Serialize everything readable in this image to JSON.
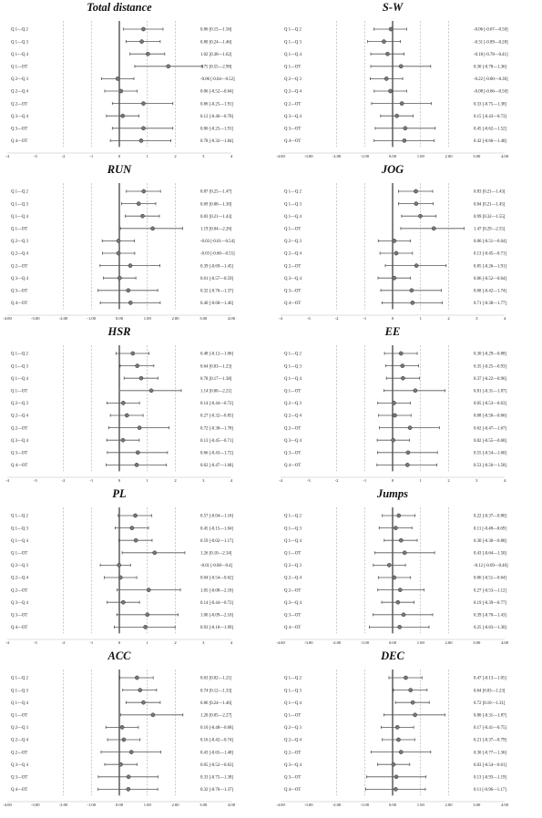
{
  "chart_data": [
    {
      "type": "forest",
      "title": "Total distance",
      "xticks": [
        "-4",
        "-3",
        "-2",
        "-1",
        "0",
        "1",
        "2",
        "3",
        "4"
      ],
      "xlim": [
        -4,
        4
      ],
      "ref_lines": [
        -2,
        -1,
        0,
        1,
        2
      ],
      "rows": [
        {
          "label": "Q 1—Q 2",
          "est": 0.86,
          "lo": 0.15,
          "hi": 1.56,
          "text": "0.86 [0.15—1.56]"
        },
        {
          "label": "Q 1—Q 3",
          "est": 0.8,
          "lo": 0.24,
          "hi": 1.46,
          "text": "0.80 [0.24—1.46]"
        },
        {
          "label": "Q 1—Q 4",
          "est": 1.02,
          "lo": 0.38,
          "hi": 1.62,
          "text": "1.02 [0.38—1.62]"
        },
        {
          "label": "Q 1—OT",
          "est": 1.75,
          "lo": 0.55,
          "hi": 2.98,
          "text": "1.75 [0.55—2.98]"
        },
        {
          "label": "Q 2—Q 3",
          "est": -0.06,
          "lo": -0.64,
          "hi": 0.52,
          "text": "-0.06 [-0.64—0.52]"
        },
        {
          "label": "Q 2—Q 4",
          "est": 0.06,
          "lo": -0.52,
          "hi": 0.64,
          "text": "0.06 [-0.52—0.64]"
        },
        {
          "label": "Q 2—OT",
          "est": 0.86,
          "lo": -0.25,
          "hi": 1.91,
          "text": "0.86 [-0.25—1.91]"
        },
        {
          "label": "Q 3—Q 4",
          "est": 0.12,
          "lo": -0.46,
          "hi": 0.7,
          "text": "0.12 [-0.46—0.70]"
        },
        {
          "label": "Q 3—OT",
          "est": 0.86,
          "lo": -0.25,
          "hi": 1.91,
          "text": "0.86 [-0.25—1.91]"
        },
        {
          "label": "Q 4—OT",
          "est": 0.78,
          "lo": -0.32,
          "hi": 1.84,
          "text": "0.78 [-0.32—1.84]"
        }
      ]
    },
    {
      "type": "forest",
      "title": "S-W",
      "xticks": [
        "-4.00",
        "-3.00",
        "-2.00",
        "-1.00",
        "0.00",
        "1.00",
        "2.00",
        "3.00",
        "4.00"
      ],
      "xlim": [
        -4,
        4
      ],
      "ref_lines": [
        -2,
        -1,
        0,
        1,
        2
      ],
      "rows": [
        {
          "label": "Q 1—Q 2",
          "est": -0.06,
          "lo": -0.67,
          "hi": 0.5,
          "text": "-0.06 [-0.67—0.50]"
        },
        {
          "label": "Q 1—Q 3",
          "est": -0.31,
          "lo": -0.89,
          "hi": 0.28,
          "text": "-0.31 [-0.89—0.28]"
        },
        {
          "label": "Q 1—Q 4",
          "est": -0.18,
          "lo": -0.78,
          "hi": 0.41,
          "text": "-0.18 [-0.78—0.41]"
        },
        {
          "label": "Q 1—OT",
          "est": 0.3,
          "lo": -0.78,
          "hi": 1.36,
          "text": "0.30 [-0.78—1.36]"
        },
        {
          "label": "Q 2—Q 3",
          "est": -0.22,
          "lo": -0.8,
          "hi": 0.36,
          "text": "-0.22 [-0.80—0.36]"
        },
        {
          "label": "Q 2—Q 4",
          "est": -0.08,
          "lo": -0.66,
          "hi": 0.5,
          "text": "-0.08 [-0.66—0.50]"
        },
        {
          "label": "Q 2—OT",
          "est": 0.33,
          "lo": -0.75,
          "hi": 1.38,
          "text": "0.33 [-0.75—1.38]"
        },
        {
          "label": "Q 3—Q 4",
          "est": 0.15,
          "lo": -0.43,
          "hi": 0.73,
          "text": "0.15 [-0.43—0.73]"
        },
        {
          "label": "Q 3—OT",
          "est": 0.45,
          "lo": -0.62,
          "hi": 1.52,
          "text": "0.45 [-0.62—1.52]"
        },
        {
          "label": "Q 4—OT",
          "est": 0.42,
          "lo": -0.66,
          "hi": 1.48,
          "text": "0.42 [-0.66—1.48]"
        }
      ]
    },
    {
      "type": "forest",
      "title": "RUN",
      "xticks": [
        "-4.00",
        "-3.00",
        "-2.00",
        "-1.00",
        "0.00",
        "1.00",
        "2.00",
        "3.00",
        "4.00"
      ],
      "xlim": [
        -4,
        4
      ],
      "ref_lines": [
        -2,
        -1,
        0,
        1,
        2
      ],
      "rows": [
        {
          "label": "Q 1—Q 2",
          "est": 0.87,
          "lo": 0.25,
          "hi": 1.47,
          "text": "0.87 [0.25—1.47]"
        },
        {
          "label": "Q 1—Q 3",
          "est": 0.69,
          "lo": 0.08,
          "hi": 1.3,
          "text": "0.69 [0.08—1.30]"
        },
        {
          "label": "Q 1—Q 4",
          "est": 0.83,
          "lo": 0.21,
          "hi": 1.43,
          "text": "0.83 [0.21—1.43]"
        },
        {
          "label": "Q 1—OT",
          "est": 1.19,
          "lo": 0.04,
          "hi": 2.26,
          "text": "1.19 [0.04—2.26]"
        },
        {
          "label": "Q 2—Q 3",
          "est": -0.03,
          "lo": -0.61,
          "hi": 0.54,
          "text": "-0.03 [-0.61—0.54]"
        },
        {
          "label": "Q 2—Q 4",
          "est": -0.03,
          "lo": -0.6,
          "hi": 0.55,
          "text": "-0.03 [-0.60—0.55]"
        },
        {
          "label": "Q 2—OT",
          "est": 0.39,
          "lo": -0.69,
          "hi": 1.45,
          "text": "0.39 [-0.69—1.45]"
        },
        {
          "label": "Q 3—Q 4",
          "est": 0.01,
          "lo": -0.57,
          "hi": 0.59,
          "text": "0.01 [-0.57—0.59]"
        },
        {
          "label": "Q 3—OT",
          "est": 0.32,
          "lo": -0.76,
          "hi": 1.37,
          "text": "0.32 [-0.76—1.37]"
        },
        {
          "label": "Q 4—OT",
          "est": 0.4,
          "lo": -0.68,
          "hi": 1.46,
          "text": "0.40 [-0.68—1.46]"
        }
      ]
    },
    {
      "type": "forest",
      "title": "JOG",
      "xticks": [
        "-4",
        "-3",
        "-2",
        "-1",
        "0",
        "1",
        "2",
        "3",
        "4"
      ],
      "xlim": [
        -4,
        4
      ],
      "ref_lines": [
        -2,
        -1,
        0,
        1,
        2
      ],
      "rows": [
        {
          "label": "Q 1—Q 2",
          "est": 0.83,
          "lo": 0.21,
          "hi": 1.43,
          "text": "0.83 [0.21—1.43]"
        },
        {
          "label": "Q 1—Q 3",
          "est": 0.84,
          "lo": 0.21,
          "hi": 1.45,
          "text": "0.84 [0.21—1.45]"
        },
        {
          "label": "Q 1—Q 4",
          "est": 0.99,
          "lo": 0.32,
          "hi": 1.55,
          "text": "0.99 [0.32—1.55]"
        },
        {
          "label": "Q 1—OT",
          "est": 1.47,
          "lo": 0.29,
          "hi": 2.55,
          "text": "1.47 [0.29—2.55]"
        },
        {
          "label": "Q 2—Q 3",
          "est": 0.06,
          "lo": -0.51,
          "hi": 0.64,
          "text": "0.06 [-0.51—0.64]"
        },
        {
          "label": "Q 2—Q 4",
          "est": 0.13,
          "lo": -0.45,
          "hi": 0.71,
          "text": "0.13 [-0.45—0.71]"
        },
        {
          "label": "Q 2—OT",
          "est": 0.85,
          "lo": -0.26,
          "hi": 1.91,
          "text": "0.85 [-0.26—1.91]"
        },
        {
          "label": "Q 3—Q 4",
          "est": 0.06,
          "lo": -0.52,
          "hi": 0.64,
          "text": "0.06 [-0.52—0.64]"
        },
        {
          "label": "Q 3—OT",
          "est": 0.68,
          "lo": -0.42,
          "hi": 1.74,
          "text": "0.68 [-0.42—1.74]"
        },
        {
          "label": "Q 4—OT",
          "est": 0.71,
          "lo": -0.38,
          "hi": 1.77,
          "text": "0.71 [-0.38—1.77]"
        }
      ]
    },
    {
      "type": "forest",
      "title": "HSR",
      "xticks": [
        "-4",
        "-3",
        "-2",
        "-1",
        "0",
        "1",
        "2",
        "3",
        "4"
      ],
      "xlim": [
        -4,
        4
      ],
      "ref_lines": [
        -2,
        -1,
        0,
        1,
        2
      ],
      "rows": [
        {
          "label": "Q 1—Q 2",
          "est": 0.48,
          "lo": -0.12,
          "hi": 1.06,
          "text": "0.48 [-0.12—1.06]"
        },
        {
          "label": "Q 1—Q 3",
          "est": 0.64,
          "lo": 0.03,
          "hi": 1.23,
          "text": "0.64 [0.03—1.23]"
        },
        {
          "label": "Q 1—Q 4",
          "est": 0.78,
          "lo": 0.17,
          "hi": 1.38,
          "text": "0.78 [0.17—1.38]"
        },
        {
          "label": "Q 1—OT",
          "est": 1.14,
          "lo": 0.0,
          "hi": 2.21,
          "text": "1.14 [0.00—2.21]"
        },
        {
          "label": "Q 2—Q 3",
          "est": 0.14,
          "lo": -0.44,
          "hi": 0.72,
          "text": "0.14 [-0.44—0.72]"
        },
        {
          "label": "Q 2—Q 4",
          "est": 0.27,
          "lo": -0.32,
          "hi": 0.85,
          "text": "0.27 [-0.32—0.85]"
        },
        {
          "label": "Q 2—OT",
          "est": 0.72,
          "lo": -0.38,
          "hi": 1.78,
          "text": "0.72 [-0.38—1.78]"
        },
        {
          "label": "Q 3—Q 4",
          "est": 0.13,
          "lo": -0.45,
          "hi": 0.71,
          "text": "0.13 [-0.45—0.71]"
        },
        {
          "label": "Q 3—OT",
          "est": 0.66,
          "lo": -0.43,
          "hi": 1.72,
          "text": "0.66 [-0.43—1.72]"
        },
        {
          "label": "Q 4—OT",
          "est": 0.62,
          "lo": -0.47,
          "hi": 1.68,
          "text": "0.62 [-0.47—1.68]"
        }
      ]
    },
    {
      "type": "forest",
      "title": "EE",
      "xticks": [
        "-4",
        "-3",
        "-2",
        "-1",
        "0",
        "1",
        "2",
        "3",
        "4"
      ],
      "xlim": [
        -4,
        4
      ],
      "ref_lines": [
        -2,
        -1,
        0,
        1,
        2
      ],
      "rows": [
        {
          "label": "Q 1—Q 2",
          "est": 0.3,
          "lo": -0.29,
          "hi": 0.88,
          "text": "0.30 [-0.29—0.88]"
        },
        {
          "label": "Q 1—Q 3",
          "est": 0.35,
          "lo": -0.25,
          "hi": 0.93,
          "text": "0.35 [-0.25—0.93]"
        },
        {
          "label": "Q 1—Q 4",
          "est": 0.37,
          "lo": -0.22,
          "hi": 0.96,
          "text": "0.37 [-0.22—0.96]"
        },
        {
          "label": "Q 1—OT",
          "est": 0.81,
          "lo": -0.31,
          "hi": 1.87,
          "text": "0.81 [-0.31—1.87]"
        },
        {
          "label": "Q 2—Q 3",
          "est": 0.05,
          "lo": -0.53,
          "hi": 0.63,
          "text": "0.05 [-0.53—0.63]"
        },
        {
          "label": "Q 2—Q 4",
          "est": 0.08,
          "lo": -0.5,
          "hi": 0.66,
          "text": "0.08 [-0.50—0.66]"
        },
        {
          "label": "Q 2—OT",
          "est": 0.62,
          "lo": -0.47,
          "hi": 1.67,
          "text": "0.62 [-0.47—1.67]"
        },
        {
          "label": "Q 3—Q 4",
          "est": 0.02,
          "lo": -0.55,
          "hi": 0.6,
          "text": "0.02 [-0.55—0.60]"
        },
        {
          "label": "Q 3—OT",
          "est": 0.55,
          "lo": -0.54,
          "hi": 1.6,
          "text": "0.55 [-0.54—1.60]"
        },
        {
          "label": "Q 4—OT",
          "est": 0.53,
          "lo": -0.56,
          "hi": 1.58,
          "text": "0.53 [-0.56—1.58]"
        }
      ]
    },
    {
      "type": "forest",
      "title": "PL",
      "xticks": [
        "-4",
        "-3",
        "-2",
        "-1",
        "0",
        "1",
        "2",
        "3",
        "4"
      ],
      "xlim": [
        -4,
        4
      ],
      "ref_lines": [
        -2,
        -1,
        0,
        1,
        2
      ],
      "rows": [
        {
          "label": "Q 1—Q 2",
          "est": 0.57,
          "lo": -0.04,
          "hi": 1.16,
          "text": "0.57 [-0.04—1.16]"
        },
        {
          "label": "Q 1—Q 3",
          "est": 0.45,
          "lo": -0.15,
          "hi": 1.04,
          "text": "0.45 [-0.15—1.04]"
        },
        {
          "label": "Q 1—Q 4",
          "est": 0.59,
          "lo": -0.02,
          "hi": 1.17,
          "text": "0.59 [-0.02—1.17]"
        },
        {
          "label": "Q 1—OT",
          "est": 1.26,
          "lo": 0.1,
          "hi": 2.34,
          "text": "1.26 [0.10—2.34]"
        },
        {
          "label": "Q 2—Q 3",
          "est": -0.01,
          "lo": -0.68,
          "hi": 0.4,
          "text": "-0.01 [-0.68—0.4]"
        },
        {
          "label": "Q 2—Q 4",
          "est": 0.04,
          "lo": -0.54,
          "hi": 0.62,
          "text": "0.04 [-0.54—0.62]"
        },
        {
          "label": "Q 2—OT",
          "est": 1.05,
          "lo": -0.08,
          "hi": 2.18,
          "text": "1.05 [-0.08—2.18]"
        },
        {
          "label": "Q 3—Q 4",
          "est": 0.14,
          "lo": -0.44,
          "hi": 0.72,
          "text": "0.14 [-0.44—0.72]"
        },
        {
          "label": "Q 3—OT",
          "est": 1.0,
          "lo": -0.09,
          "hi": 2.1,
          "text": "1.00 [-0.09—2.10]"
        },
        {
          "label": "Q 4—OT",
          "est": 0.93,
          "lo": -0.18,
          "hi": 1.99,
          "text": "0.93 [-0.18—1.99]"
        }
      ]
    },
    {
      "type": "forest",
      "title": "Jumps",
      "xticks": [
        "-4.00",
        "-3.00",
        "-2.00",
        "-1.00",
        "0.00",
        "1.00",
        "2.00",
        "3.00",
        "4.00"
      ],
      "xlim": [
        -4,
        4
      ],
      "ref_lines": [
        -2,
        -1,
        0,
        1,
        2
      ],
      "rows": [
        {
          "label": "Q 1—Q 2",
          "est": 0.22,
          "lo": -0.37,
          "hi": 0.8,
          "text": "0.22 [-0.37—0.80]"
        },
        {
          "label": "Q 1—Q 3",
          "est": 0.11,
          "lo": -0.48,
          "hi": 0.69,
          "text": "0.11 [-0.48—0.69]"
        },
        {
          "label": "Q 1—Q 4",
          "est": 0.3,
          "lo": -0.3,
          "hi": 0.88,
          "text": "0.30 [-0.30—0.88]"
        },
        {
          "label": "Q 1—OT",
          "est": 0.43,
          "lo": -0.64,
          "hi": 1.5,
          "text": "0.43 [-0.64—1.50]"
        },
        {
          "label": "Q 2—Q 3",
          "est": -0.12,
          "lo": -0.69,
          "hi": 0.46,
          "text": "-0.12 [-0.69—0.46]"
        },
        {
          "label": "Q 2—Q 4",
          "est": 0.06,
          "lo": -0.51,
          "hi": 0.64,
          "text": "0.06 [-0.51—0.64]"
        },
        {
          "label": "Q 2—OT",
          "est": 0.27,
          "lo": -0.53,
          "hi": 1.12,
          "text": "0.27 [-0.53—1.12]"
        },
        {
          "label": "Q 3—Q 4",
          "est": 0.19,
          "lo": -0.39,
          "hi": 0.77,
          "text": "0.19 [-0.39—0.77]"
        },
        {
          "label": "Q 3—OT",
          "est": 0.39,
          "lo": -0.7,
          "hi": 1.43,
          "text": "0.39 [-0.70—1.43]"
        },
        {
          "label": "Q 4—OT",
          "est": 0.25,
          "lo": -0.83,
          "hi": 1.3,
          "text": "0.25 [-0.83—1.30]"
        }
      ]
    },
    {
      "type": "forest",
      "title": "ACC",
      "xticks": [
        "-4.00",
        "-3.00",
        "-2.00",
        "-1.00",
        "0.00",
        "1.00",
        "2.00",
        "3.00",
        "4.00"
      ],
      "xlim": [
        -4,
        4
      ],
      "ref_lines": [
        -2,
        -1,
        0,
        1,
        2
      ],
      "rows": [
        {
          "label": "Q 1—Q 2",
          "est": 0.63,
          "lo": 0.02,
          "hi": 1.21,
          "text": "0.63 [0.02—1.21]"
        },
        {
          "label": "Q 1—Q 3",
          "est": 0.74,
          "lo": 0.12,
          "hi": 1.33,
          "text": "0.74 [0.12—1.33]"
        },
        {
          "label": "Q 1—Q 4",
          "est": 0.86,
          "lo": 0.24,
          "hi": 1.46,
          "text": "0.86 [0.24—1.46]"
        },
        {
          "label": "Q 1—OT",
          "est": 1.2,
          "lo": 0.05,
          "hi": 2.27,
          "text": "1.20 [0.05—2.27]"
        },
        {
          "label": "Q 2—Q 3",
          "est": 0.1,
          "lo": -0.48,
          "hi": 0.68,
          "text": "0.10 [-0.48—0.68]"
        },
        {
          "label": "Q 2—Q 4",
          "est": 0.16,
          "lo": -0.42,
          "hi": 0.74,
          "text": "0.16 [-0.42—0.74]"
        },
        {
          "label": "Q 2—OT",
          "est": 0.43,
          "lo": -0.65,
          "hi": 1.48,
          "text": "0.43 [-0.65—1.48]"
        },
        {
          "label": "Q 3—Q 4",
          "est": 0.05,
          "lo": -0.52,
          "hi": 0.63,
          "text": "0.05 [-0.52—0.63]"
        },
        {
          "label": "Q 3—OT",
          "est": 0.33,
          "lo": -0.75,
          "hi": 1.38,
          "text": "0.33 [-0.75—1.38]"
        },
        {
          "label": "Q 4—OT",
          "est": 0.32,
          "lo": -0.76,
          "hi": 1.37,
          "text": "0.32 [-0.76—1.37]"
        }
      ]
    },
    {
      "type": "forest",
      "title": "DEC",
      "xticks": [
        "-4.00",
        "-3.00",
        "-2.00",
        "-1.00",
        "0.00",
        "1.00",
        "2.00",
        "3.00",
        "4.00"
      ],
      "xlim": [
        -4,
        4
      ],
      "ref_lines": [
        -2,
        -1,
        0,
        1,
        2
      ],
      "rows": [
        {
          "label": "Q 1—Q 2",
          "est": 0.47,
          "lo": -0.13,
          "hi": 1.05,
          "text": "0.47 [-0.13—1.05]"
        },
        {
          "label": "Q 1—Q 3",
          "est": 0.64,
          "lo": 0.03,
          "hi": 1.23,
          "text": "0.64 [0.03—1.23]"
        },
        {
          "label": "Q 1—Q 4",
          "est": 0.72,
          "lo": 0.1,
          "hi": 1.31,
          "text": "0.72 [0.10—1.31]"
        },
        {
          "label": "Q 1—OT",
          "est": 0.8,
          "lo": -0.31,
          "hi": 1.87,
          "text": "0.80 [-0.31—1.87]"
        },
        {
          "label": "Q 2—Q 3",
          "est": 0.17,
          "lo": -0.41,
          "hi": 0.75,
          "text": "0.17 [-0.41—0.75]"
        },
        {
          "label": "Q 2—Q 4",
          "est": 0.21,
          "lo": -0.37,
          "hi": 0.79,
          "text": "0.21 [-0.37—0.79]"
        },
        {
          "label": "Q 2—OT",
          "est": 0.3,
          "lo": -0.77,
          "hi": 1.36,
          "text": "0.30 [-0.77—1.36]"
        },
        {
          "label": "Q 3—Q 4",
          "est": 0.03,
          "lo": -0.54,
          "hi": 0.61,
          "text": "0.03 [-0.54—0.61]"
        },
        {
          "label": "Q 3—OT",
          "est": 0.13,
          "lo": -0.93,
          "hi": 1.19,
          "text": "0.13 [-0.93—1.19]"
        },
        {
          "label": "Q 4—OT",
          "est": 0.11,
          "lo": -0.96,
          "hi": 1.17,
          "text": "0.11 [-0.96—1.17]"
        }
      ]
    }
  ]
}
